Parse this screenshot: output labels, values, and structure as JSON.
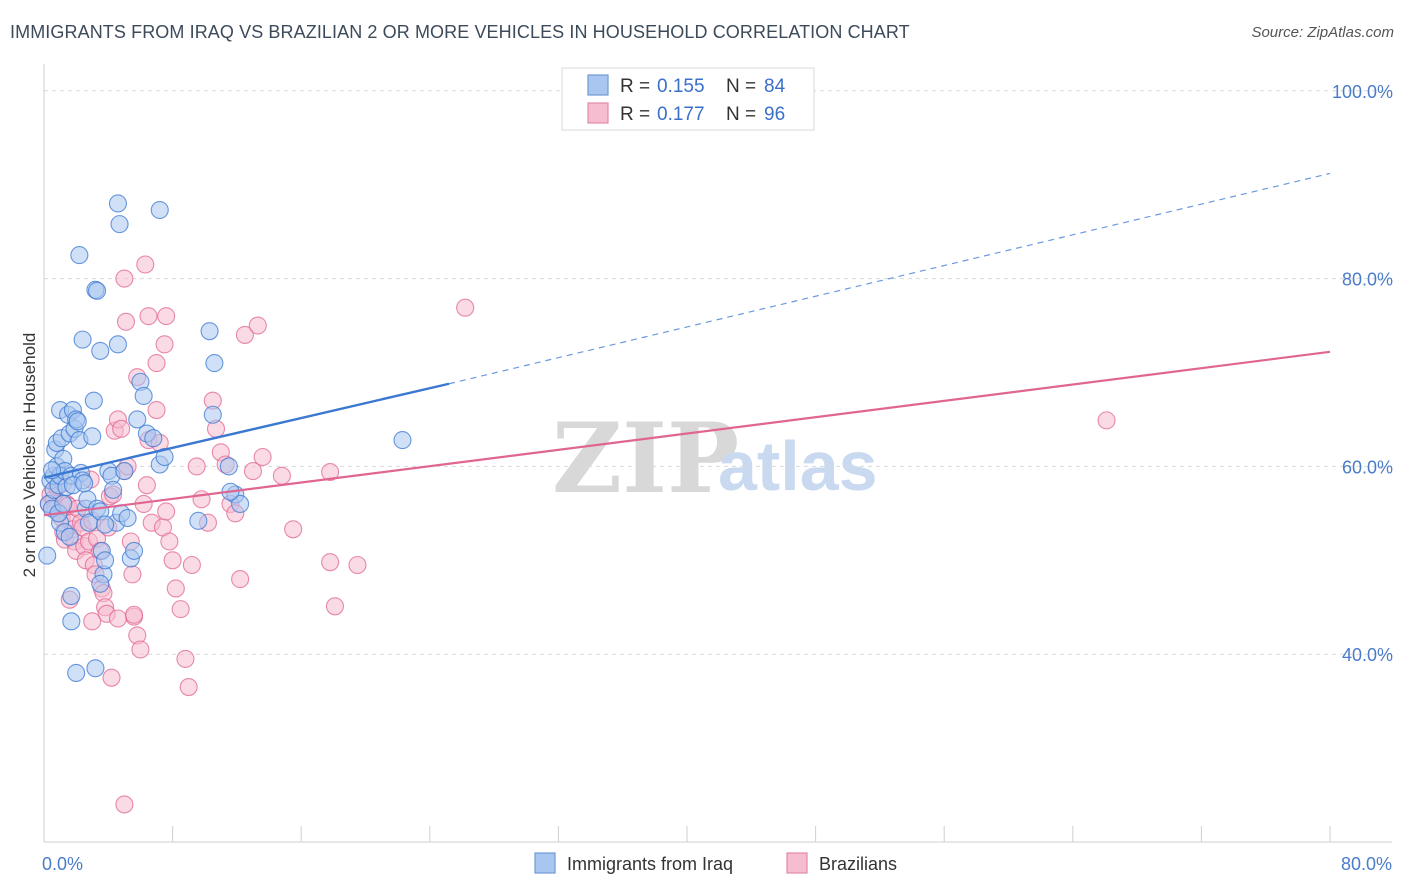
{
  "title": "IMMIGRANTS FROM IRAQ VS BRAZILIAN 2 OR MORE VEHICLES IN HOUSEHOLD CORRELATION CHART",
  "source": "Source: ZipAtlas.com",
  "watermark": {
    "zip": "ZIP",
    "atlas": "atlas"
  },
  "colors": {
    "blue": "#3a78d1",
    "blue_fill": "#a9c6f0",
    "pink": "#e06592",
    "pink_fill": "#f6bcd0",
    "grid": "#d9d9d9",
    "tick_text": "#4a7cc9"
  },
  "legend": {
    "rows": [
      {
        "r_label": "R =",
        "r_value": "0.155",
        "n_label": "N =",
        "n_value": "84"
      },
      {
        "r_label": "R =",
        "r_value": "0.177",
        "n_label": "N =",
        "n_value": "96"
      }
    ]
  },
  "bottom_legend": [
    "Immigrants from Iraq",
    "Brazilians"
  ],
  "chart_data": {
    "type": "scatter",
    "title": "IMMIGRANTS FROM IRAQ VS BRAZILIAN 2 OR MORE VEHICLES IN HOUSEHOLD CORRELATION CHART",
    "xlabel": "",
    "ylabel": "2 or more Vehicles in Household",
    "xlim": [
      0,
      80
    ],
    "ylim": [
      20,
      102
    ],
    "x_tick_labels": [
      "0.0%",
      "80.0%"
    ],
    "y_ticks": [
      40,
      60,
      80,
      100
    ],
    "y_tick_labels": [
      "40.0%",
      "60.0%",
      "80.0%",
      "100.0%"
    ],
    "series": [
      {
        "name": "Immigrants from Iraq",
        "r": 0.155,
        "n": 84,
        "trend": {
          "x0": 0,
          "y0": 58.8,
          "x1": 25.2,
          "y1": 68.8,
          "dash_x1": 80,
          "dash_y1": 91.2
        },
        "points": [
          [
            0.3,
            56
          ],
          [
            0.4,
            58.5
          ],
          [
            0.5,
            55.5
          ],
          [
            0.6,
            57.5
          ],
          [
            0.6,
            59
          ],
          [
            0.7,
            61.8
          ],
          [
            0.8,
            60
          ],
          [
            0.8,
            62.5
          ],
          [
            0.9,
            58
          ],
          [
            1.0,
            59
          ],
          [
            1.0,
            66
          ],
          [
            1.1,
            63
          ],
          [
            1.2,
            60.8
          ],
          [
            1.3,
            59.5
          ],
          [
            1.4,
            57.8
          ],
          [
            1.5,
            65.5
          ],
          [
            1.6,
            63.5
          ],
          [
            1.7,
            59
          ],
          [
            1.8,
            66
          ],
          [
            1.9,
            64
          ],
          [
            2.0,
            65
          ],
          [
            2.1,
            64.8
          ],
          [
            2.2,
            62.8
          ],
          [
            2.3,
            59.3
          ],
          [
            2.4,
            58.5
          ],
          [
            2.6,
            55.5
          ],
          [
            2.7,
            56.5
          ],
          [
            2.8,
            54
          ],
          [
            3.0,
            63.2
          ],
          [
            3.1,
            67
          ],
          [
            3.3,
            55.5
          ],
          [
            3.5,
            55.2
          ],
          [
            3.6,
            51
          ],
          [
            3.7,
            48.5
          ],
          [
            3.8,
            50
          ],
          [
            4.0,
            59.5
          ],
          [
            4.2,
            59
          ],
          [
            4.3,
            57.5
          ],
          [
            4.5,
            54
          ],
          [
            4.8,
            55
          ],
          [
            5.0,
            59.5
          ],
          [
            5.2,
            54.5
          ],
          [
            5.4,
            50.2
          ],
          [
            5.6,
            51
          ],
          [
            5.8,
            65
          ],
          [
            6.0,
            69
          ],
          [
            6.2,
            67.5
          ],
          [
            6.4,
            63.5
          ],
          [
            6.8,
            63
          ],
          [
            7.2,
            60.2
          ],
          [
            7.5,
            61
          ],
          [
            2.2,
            82.5
          ],
          [
            3.2,
            78.8
          ],
          [
            3.3,
            78.7
          ],
          [
            4.6,
            88
          ],
          [
            4.7,
            85.8
          ],
          [
            7.2,
            87.3
          ],
          [
            2.4,
            73.5
          ],
          [
            3.5,
            72.3
          ],
          [
            4.6,
            73
          ],
          [
            10.3,
            74.4
          ],
          [
            10.6,
            71
          ],
          [
            10.5,
            65.5
          ],
          [
            9.6,
            54.2
          ],
          [
            11.5,
            60
          ],
          [
            11.9,
            57
          ],
          [
            12.2,
            56
          ],
          [
            11.6,
            57.3
          ],
          [
            22.3,
            62.8
          ],
          [
            1.7,
            46.2
          ],
          [
            1.7,
            43.5
          ],
          [
            2.0,
            38
          ],
          [
            3.2,
            38.5
          ],
          [
            3.5,
            47.5
          ],
          [
            1.0,
            54
          ],
          [
            1.3,
            53
          ],
          [
            1.6,
            52.5
          ],
          [
            0.9,
            55
          ],
          [
            1.2,
            56
          ],
          [
            0.5,
            59.6
          ],
          [
            1.8,
            58
          ],
          [
            2.5,
            58.2
          ],
          [
            3.8,
            53.8
          ],
          [
            0.2,
            50.5
          ]
        ]
      },
      {
        "name": "Brazilians",
        "r": 0.177,
        "n": 96,
        "trend": {
          "x0": 0,
          "y0": 54.8,
          "x1": 80,
          "y1": 72.2
        },
        "points": [
          [
            0.3,
            56
          ],
          [
            0.4,
            57
          ],
          [
            0.6,
            56.5
          ],
          [
            0.7,
            55.5
          ],
          [
            0.8,
            57.8
          ],
          [
            1.0,
            55
          ],
          [
            1.1,
            54.5
          ],
          [
            1.2,
            53
          ],
          [
            1.3,
            52.2
          ],
          [
            1.4,
            56
          ],
          [
            1.5,
            55.8
          ],
          [
            1.7,
            54
          ],
          [
            1.8,
            53.3
          ],
          [
            1.9,
            52
          ],
          [
            2.0,
            51
          ],
          [
            2.1,
            55.5
          ],
          [
            2.3,
            54
          ],
          [
            2.4,
            53.5
          ],
          [
            2.5,
            51.5
          ],
          [
            2.6,
            50
          ],
          [
            2.8,
            52
          ],
          [
            3.0,
            54.2
          ],
          [
            3.1,
            49.5
          ],
          [
            3.2,
            48.5
          ],
          [
            3.3,
            52.3
          ],
          [
            3.5,
            51
          ],
          [
            3.6,
            47
          ],
          [
            3.7,
            46.5
          ],
          [
            3.8,
            45
          ],
          [
            3.9,
            44.3
          ],
          [
            4.0,
            53.5
          ],
          [
            4.1,
            56.8
          ],
          [
            4.3,
            57
          ],
          [
            4.4,
            63.8
          ],
          [
            4.6,
            65
          ],
          [
            4.8,
            64
          ],
          [
            5.0,
            59.5
          ],
          [
            5.2,
            60
          ],
          [
            5.4,
            52
          ],
          [
            5.5,
            48.5
          ],
          [
            5.6,
            44
          ],
          [
            5.8,
            42
          ],
          [
            6.0,
            40.5
          ],
          [
            6.2,
            56
          ],
          [
            6.4,
            58
          ],
          [
            6.5,
            62.8
          ],
          [
            6.7,
            54
          ],
          [
            7.0,
            66
          ],
          [
            7.2,
            62.5
          ],
          [
            7.4,
            53.5
          ],
          [
            7.6,
            55.2
          ],
          [
            7.8,
            52
          ],
          [
            8.0,
            50
          ],
          [
            8.2,
            47
          ],
          [
            8.5,
            44.8
          ],
          [
            8.8,
            39.5
          ],
          [
            9.0,
            36.5
          ],
          [
            9.2,
            49.5
          ],
          [
            9.5,
            60
          ],
          [
            9.8,
            56.5
          ],
          [
            10.2,
            54
          ],
          [
            10.5,
            67
          ],
          [
            10.7,
            64
          ],
          [
            11.0,
            61.5
          ],
          [
            11.3,
            60.2
          ],
          [
            11.6,
            56
          ],
          [
            11.9,
            55
          ],
          [
            12.2,
            48
          ],
          [
            12.5,
            74
          ],
          [
            13.0,
            59.5
          ],
          [
            13.3,
            75
          ],
          [
            13.6,
            61
          ],
          [
            14.8,
            59
          ],
          [
            15.5,
            53.3
          ],
          [
            17.8,
            59.4
          ],
          [
            17.8,
            49.8
          ],
          [
            18.1,
            45.1
          ],
          [
            19.5,
            49.5
          ],
          [
            26.2,
            76.9
          ],
          [
            66.1,
            64.9
          ],
          [
            5.0,
            80
          ],
          [
            6.3,
            81.5
          ],
          [
            5.1,
            75.4
          ],
          [
            6.5,
            76
          ],
          [
            7.6,
            76
          ],
          [
            7.5,
            73
          ],
          [
            7.0,
            71
          ],
          [
            5.8,
            69.5
          ],
          [
            4.2,
            37.5
          ],
          [
            4.6,
            43.8
          ],
          [
            5.6,
            44.2
          ],
          [
            5.0,
            24
          ],
          [
            3.0,
            43.5
          ],
          [
            1.6,
            45.8
          ],
          [
            1.2,
            58.2
          ],
          [
            2.9,
            58.6
          ]
        ]
      }
    ]
  }
}
